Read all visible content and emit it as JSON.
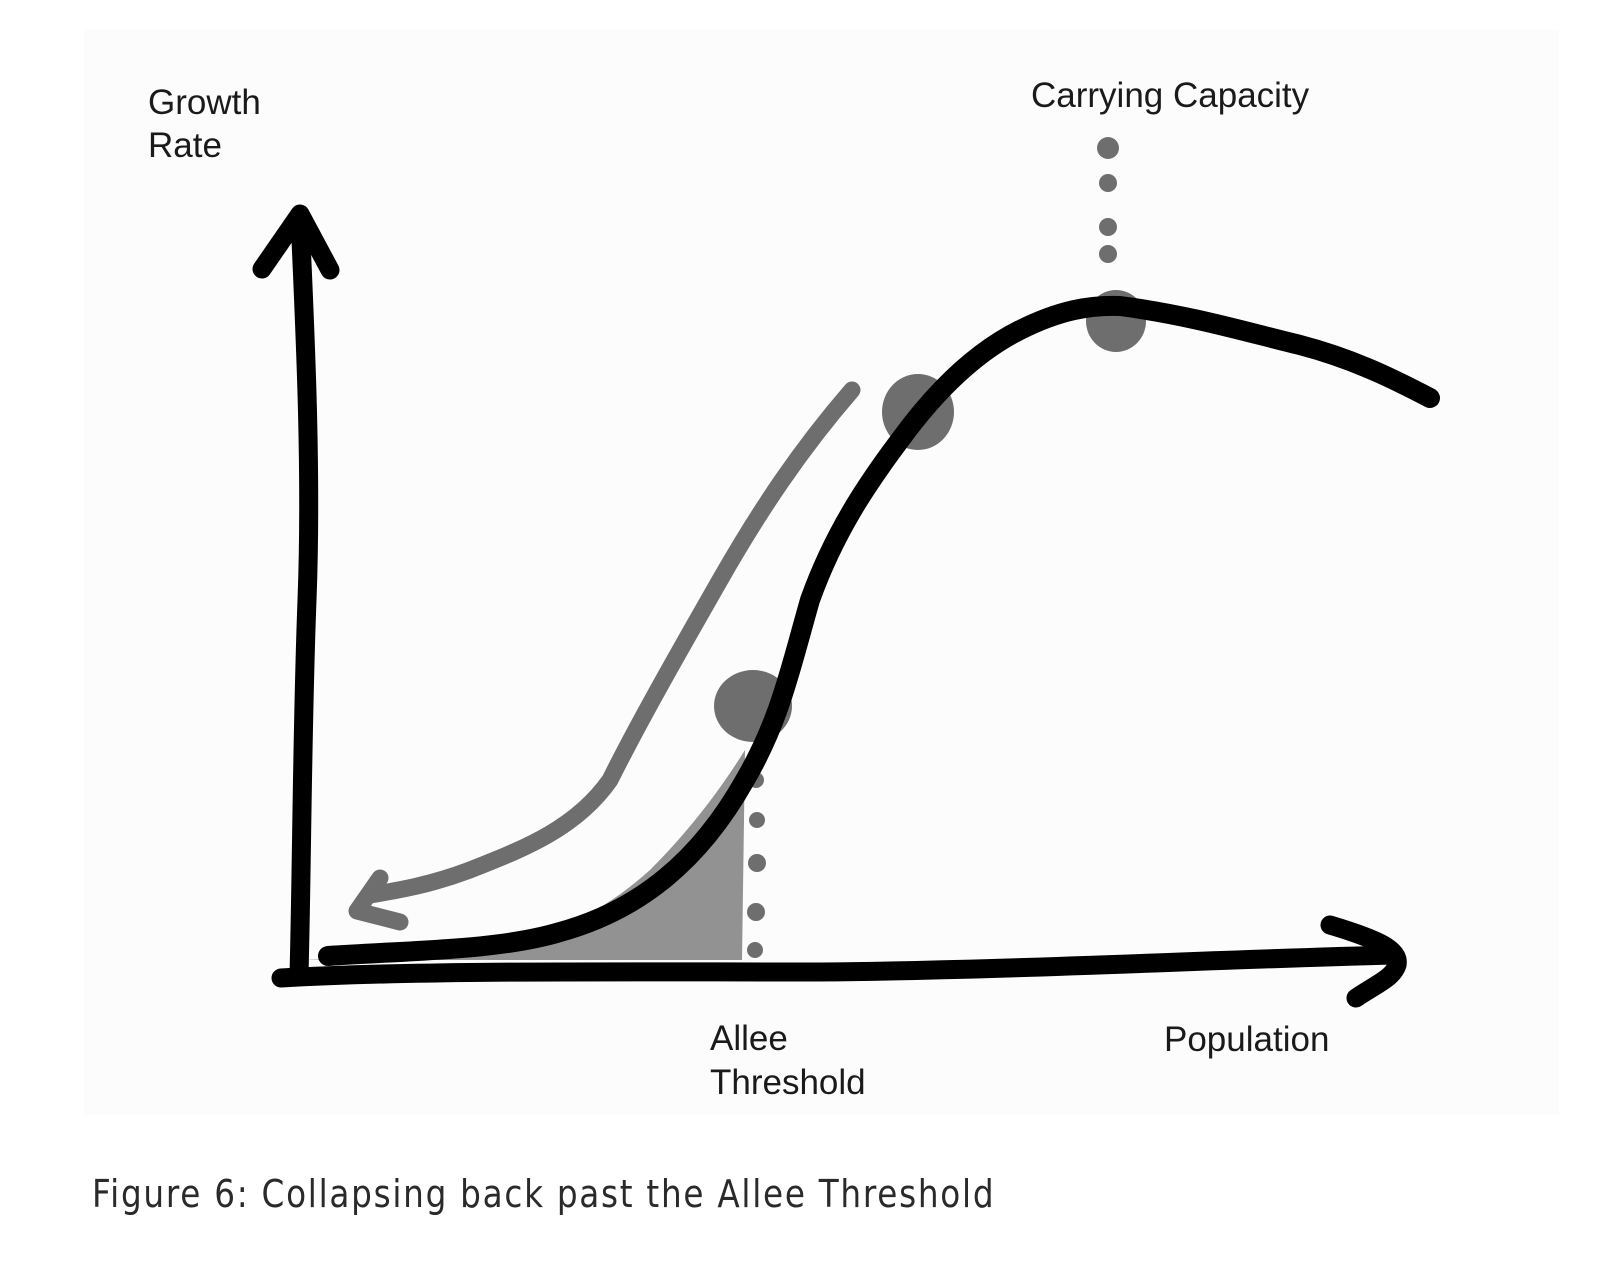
{
  "diagram": {
    "y_axis_label_line1": "Growth",
    "y_axis_label_line2": "Rate",
    "x_axis_label": "Population",
    "carrying_capacity_label": "Carrying Capacity",
    "allee_label_line1": "Allee",
    "allee_label_line2": "Threshold",
    "colors": {
      "ink": "#000000",
      "marker": "#6e6e6e",
      "shade": "#8c8c8c",
      "text": "#1a1a1a"
    }
  },
  "caption": "Figure 6: Collapsing back past the Allee Threshold"
}
